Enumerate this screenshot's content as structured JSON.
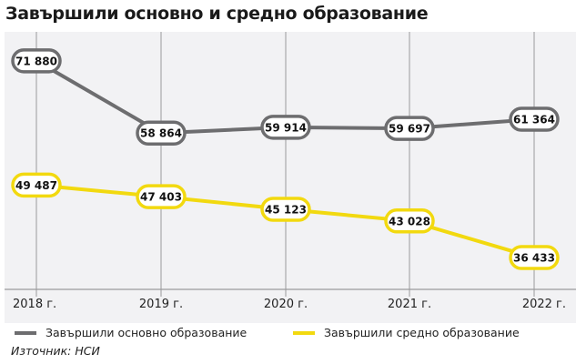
{
  "chart_data": {
    "type": "line",
    "title": "Завършили основно и средно образование",
    "categories": [
      "2018 г.",
      "2019 г.",
      "2020 г.",
      "2021 г.",
      "2022 г."
    ],
    "series": [
      {
        "name": "Завършили основно образование",
        "color": "#6d6d6f",
        "values": [
          71880,
          58864,
          59914,
          59697,
          61364
        ],
        "labels": [
          "71 880",
          "58 864",
          "59 914",
          "59 697",
          "61 364"
        ]
      },
      {
        "name": "Завършили средно образование",
        "color": "#f2d90f",
        "values": [
          49487,
          47403,
          45123,
          43028,
          36433
        ],
        "labels": [
          "49 487",
          "47 403",
          "45 123",
          "43 028",
          "36 433"
        ]
      }
    ],
    "ylim": [
      30700,
      77100
    ],
    "grid": "vertical",
    "legend": "bottom",
    "xlabel": "",
    "ylabel": ""
  },
  "source": "Източник: НСИ"
}
